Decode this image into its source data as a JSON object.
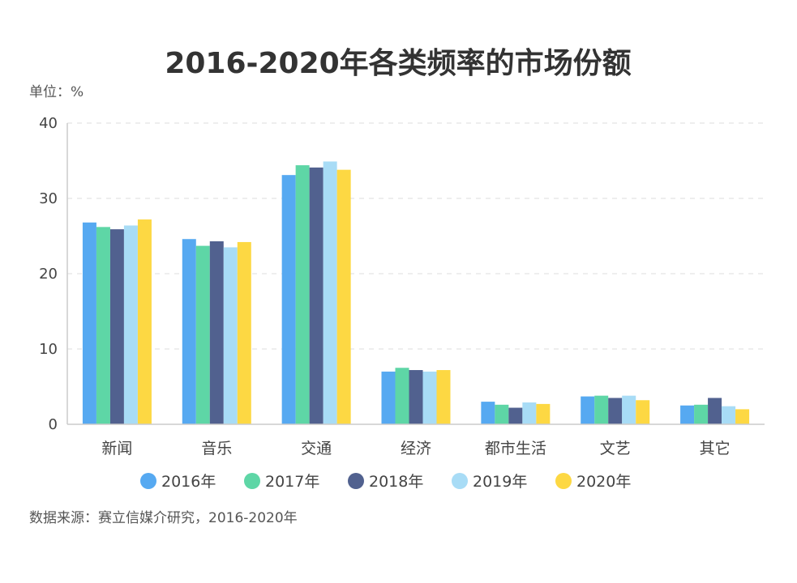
{
  "chart_data": {
    "type": "bar",
    "title": "2016-2020年各类频率的市场份额",
    "unit_label": "单位：%",
    "source": "数据来源：赛立信媒介研究，2016-2020年",
    "categories": [
      "新闻",
      "音乐",
      "交通",
      "经济",
      "都市生活",
      "文艺",
      "其它"
    ],
    "series": [
      {
        "name": "2016年",
        "color": "#56a9f1",
        "values": [
          26.8,
          24.6,
          33.1,
          7.0,
          3.0,
          3.7,
          2.5
        ]
      },
      {
        "name": "2017年",
        "color": "#5ed6a6",
        "values": [
          26.2,
          23.7,
          34.4,
          7.5,
          2.6,
          3.8,
          2.6
        ]
      },
      {
        "name": "2018年",
        "color": "#51618f",
        "values": [
          25.9,
          24.3,
          34.1,
          7.2,
          2.2,
          3.5,
          3.5
        ]
      },
      {
        "name": "2019年",
        "color": "#a8dcf6",
        "values": [
          26.4,
          23.5,
          34.9,
          7.0,
          2.9,
          3.8,
          2.4
        ]
      },
      {
        "name": "2020年",
        "color": "#fdd843",
        "values": [
          27.2,
          24.2,
          33.8,
          7.2,
          2.7,
          3.2,
          2.0
        ]
      }
    ],
    "ylim": [
      0,
      40
    ],
    "yticks": [
      0,
      10,
      20,
      30,
      40
    ],
    "grid": true,
    "legend_position": "bottom"
  }
}
